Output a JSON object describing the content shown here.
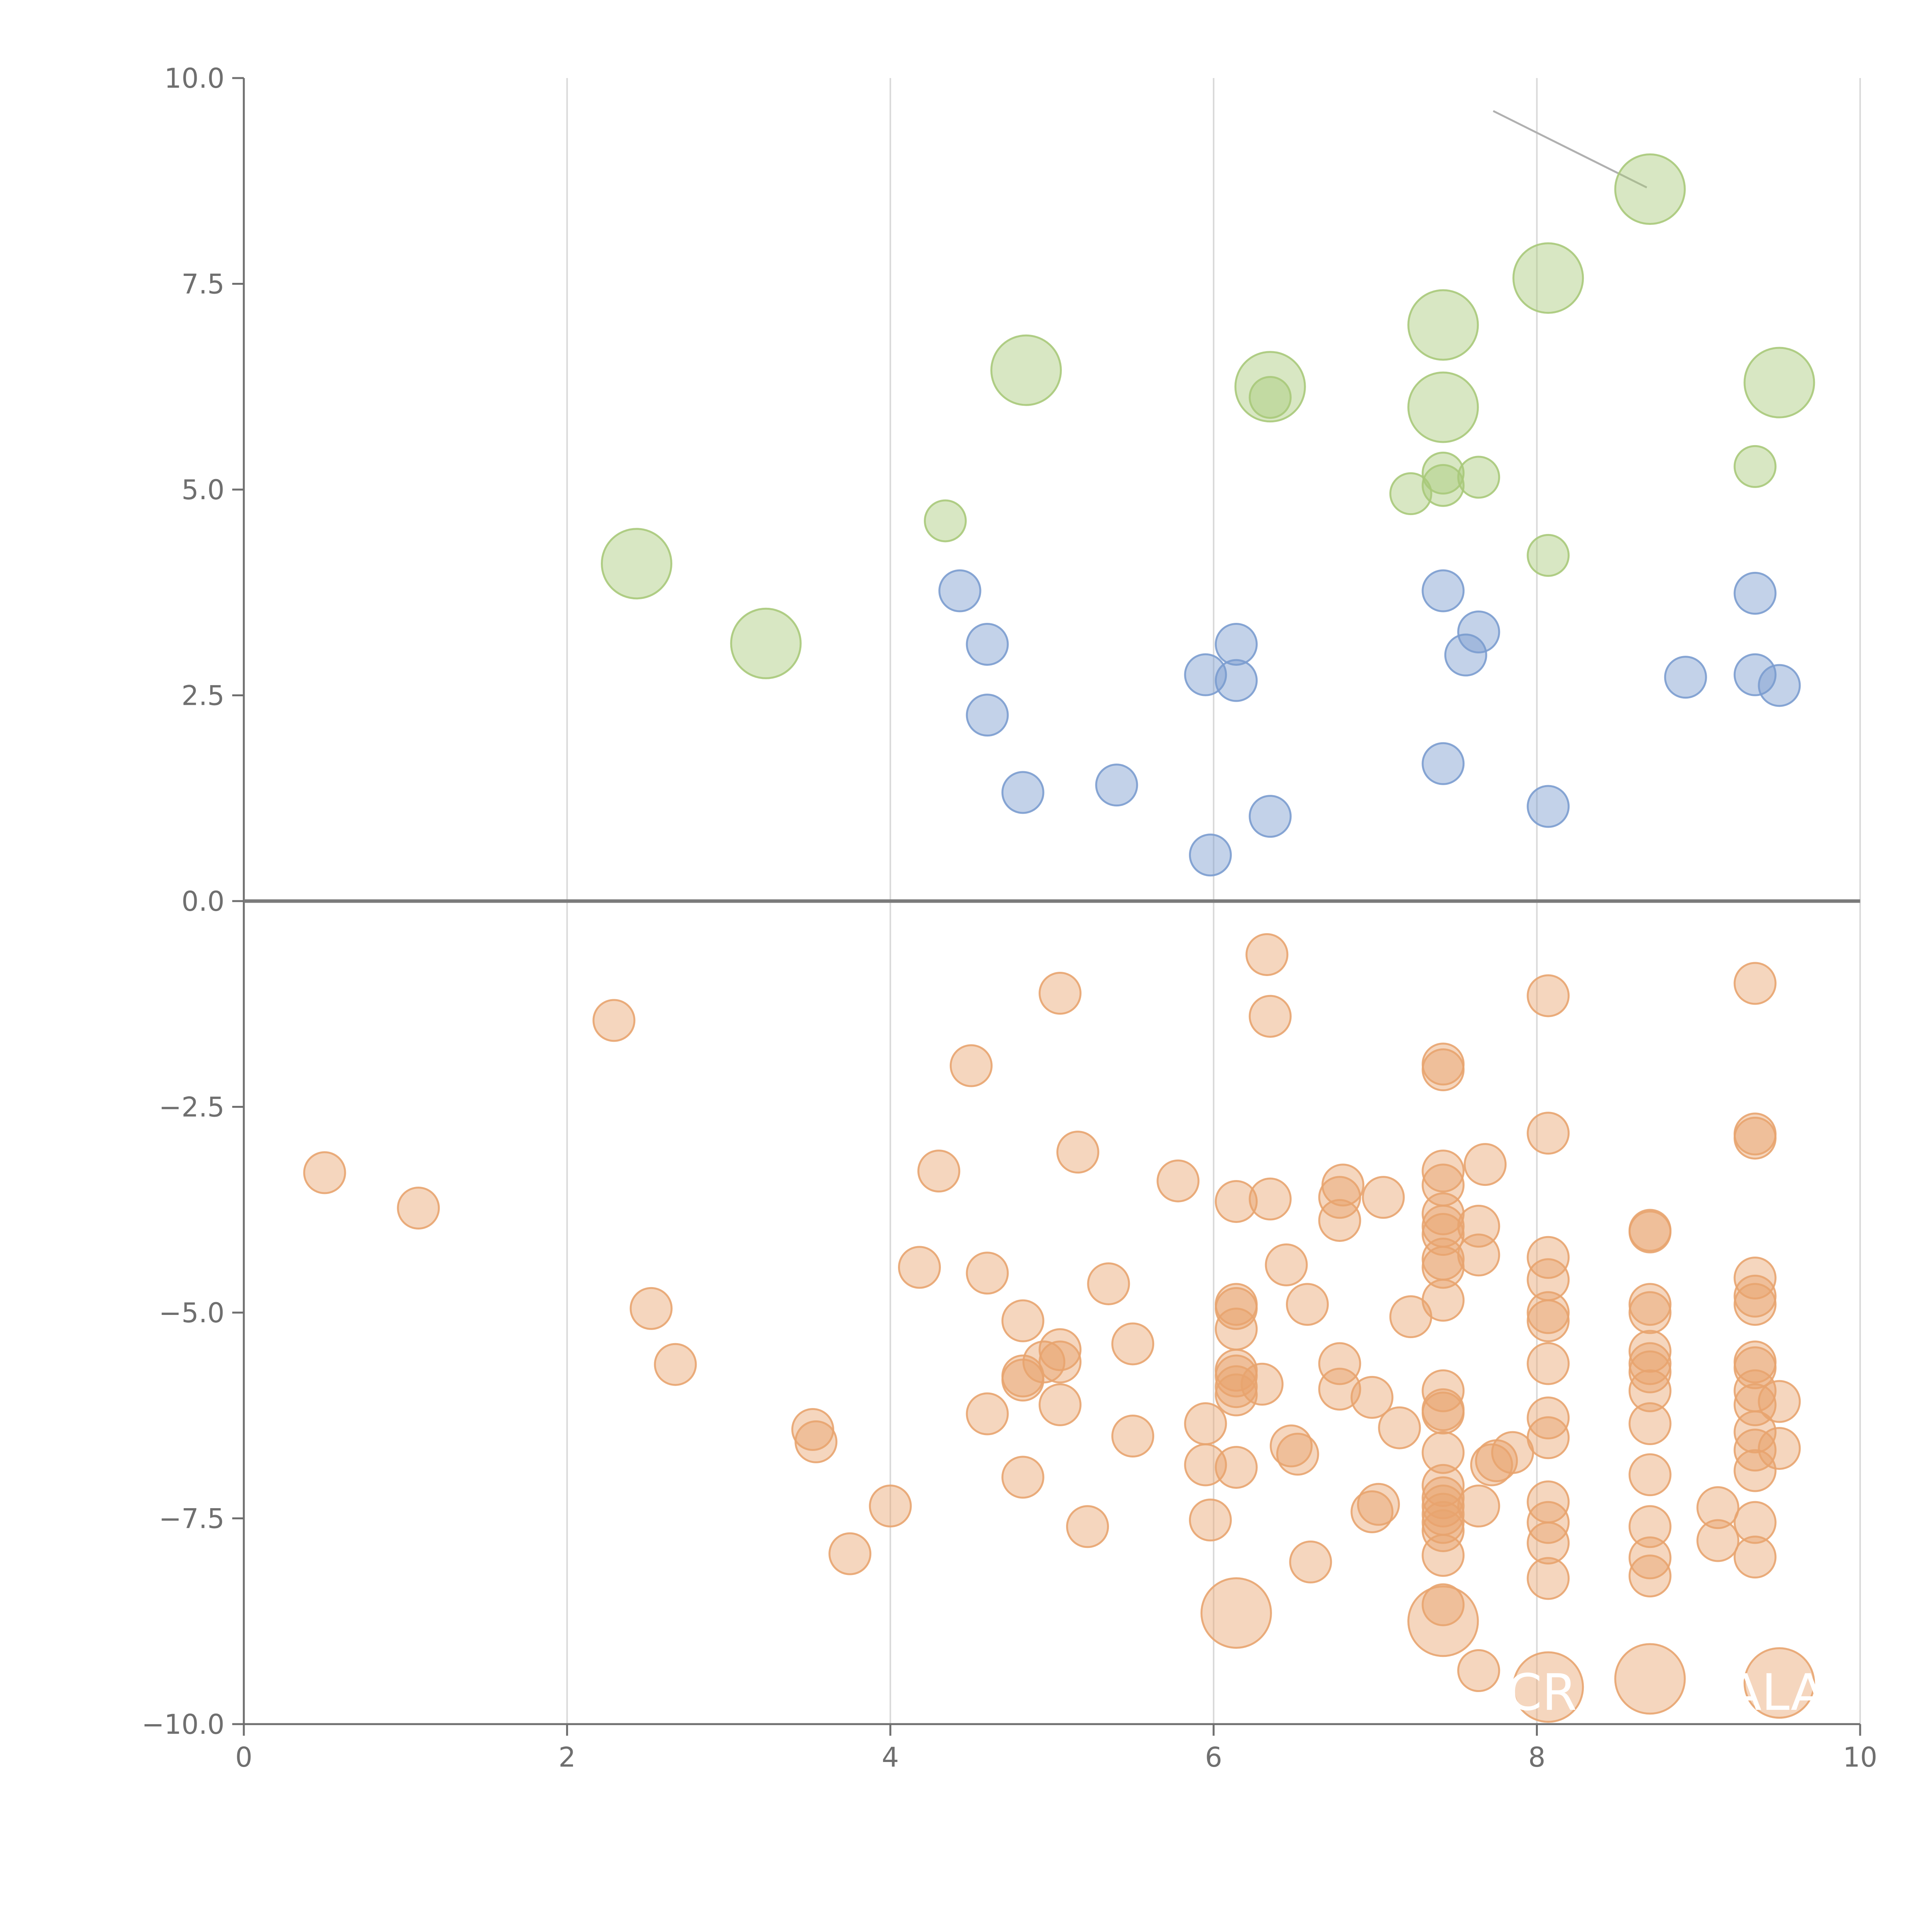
{
  "chart_data": {
    "type": "scatter",
    "title": "",
    "xlabel": "",
    "ylabel": "",
    "xlim": [
      0,
      10
    ],
    "ylim": [
      -10,
      10
    ],
    "x_ticks": [
      0,
      2,
      4,
      6,
      8,
      10
    ],
    "x_tick_labels": [
      "0",
      "2",
      "4",
      "6",
      "8",
      "10"
    ],
    "y_ticks": [
      10,
      7.5,
      5,
      2.5,
      0,
      -2.5,
      -5,
      -7.5,
      -10
    ],
    "y_tick_labels": [
      "10.0",
      "7.5",
      "5.0",
      "2.5",
      "0.0",
      "−2.5",
      "−5.0",
      "−7.5",
      "−10.0"
    ],
    "vertical_grid": true,
    "zero_line": true,
    "colors": {
      "green": "#a9c97a",
      "blue": "#7b9ccf",
      "orange": "#e8a46f",
      "grid": "#d9d9d9",
      "axis": "#6f6f6f",
      "zero_line": "#7a7a7a",
      "leader": "#b0b0b0"
    },
    "series": [
      {
        "color": "#a9c97a",
        "points": [
          [
            2.43,
            4.1,
            2
          ],
          [
            3.23,
            3.13,
            2
          ],
          [
            4.34,
            4.62,
            1
          ],
          [
            4.84,
            6.45,
            2
          ],
          [
            6.35,
            6.25,
            2
          ],
          [
            6.35,
            6.12,
            1
          ],
          [
            7.22,
            4.95,
            1
          ],
          [
            7.42,
            5.2,
            1
          ],
          [
            7.42,
            5.05,
            1
          ],
          [
            7.42,
            7.0,
            2
          ],
          [
            7.42,
            6.0,
            2
          ],
          [
            7.64,
            5.15,
            1
          ],
          [
            8.07,
            7.57,
            2
          ],
          [
            8.07,
            4.2,
            1
          ],
          [
            8.7,
            8.65,
            2
          ],
          [
            9.35,
            5.28,
            1
          ],
          [
            9.5,
            6.3,
            2
          ]
        ]
      },
      {
        "color": "#7b9ccf",
        "points": [
          [
            4.43,
            3.77,
            1
          ],
          [
            4.6,
            3.12,
            1
          ],
          [
            4.6,
            2.26,
            1
          ],
          [
            4.82,
            1.32,
            1
          ],
          [
            5.4,
            1.41,
            1
          ],
          [
            5.95,
            2.75,
            1
          ],
          [
            5.98,
            0.56,
            1
          ],
          [
            6.14,
            3.12,
            1
          ],
          [
            6.14,
            2.68,
            1
          ],
          [
            6.35,
            1.03,
            1
          ],
          [
            7.42,
            3.77,
            1
          ],
          [
            7.42,
            1.67,
            1
          ],
          [
            7.56,
            2.99,
            1
          ],
          [
            7.64,
            3.27,
            1
          ],
          [
            8.07,
            1.15,
            1
          ],
          [
            8.92,
            2.72,
            1
          ],
          [
            9.35,
            3.74,
            1
          ],
          [
            9.35,
            2.75,
            1
          ],
          [
            9.5,
            2.62,
            1
          ]
        ]
      },
      {
        "color": "#e8a46f",
        "points": [
          [
            0.5,
            -3.3,
            1
          ],
          [
            1.08,
            -3.73,
            1
          ],
          [
            2.29,
            -1.45,
            1
          ],
          [
            2.52,
            -4.95,
            1
          ],
          [
            2.67,
            -5.63,
            1
          ],
          [
            3.52,
            -6.42,
            1
          ],
          [
            3.54,
            -6.57,
            1
          ],
          [
            3.75,
            -7.93,
            1
          ],
          [
            4.0,
            -7.35,
            1
          ],
          [
            4.18,
            -4.45,
            1
          ],
          [
            4.3,
            -3.28,
            1
          ],
          [
            4.5,
            -2.0,
            1
          ],
          [
            4.6,
            -4.52,
            1
          ],
          [
            4.6,
            -6.23,
            1
          ],
          [
            4.82,
            -5.1,
            1
          ],
          [
            4.82,
            -5.77,
            1
          ],
          [
            4.82,
            -5.82,
            1
          ],
          [
            4.82,
            -7.0,
            1
          ],
          [
            4.95,
            -5.6,
            1
          ],
          [
            5.05,
            -1.12,
            1
          ],
          [
            5.05,
            -5.45,
            1
          ],
          [
            5.05,
            -5.6,
            1
          ],
          [
            5.05,
            -6.12,
            1
          ],
          [
            5.16,
            -3.05,
            1
          ],
          [
            5.22,
            -7.6,
            1
          ],
          [
            5.35,
            -4.65,
            1
          ],
          [
            5.5,
            -5.38,
            1
          ],
          [
            5.5,
            -6.5,
            1
          ],
          [
            5.78,
            -3.4,
            1
          ],
          [
            5.95,
            -6.35,
            1
          ],
          [
            5.95,
            -6.85,
            1
          ],
          [
            5.98,
            -7.52,
            1
          ],
          [
            6.14,
            -3.65,
            1
          ],
          [
            6.14,
            -4.9,
            1
          ],
          [
            6.14,
            -4.95,
            1
          ],
          [
            6.14,
            -5.2,
            1
          ],
          [
            6.14,
            -5.7,
            1
          ],
          [
            6.14,
            -5.77,
            1
          ],
          [
            6.14,
            -5.9,
            1
          ],
          [
            6.14,
            -6.0,
            1
          ],
          [
            6.14,
            -6.88,
            1
          ],
          [
            6.14,
            -8.65,
            2
          ],
          [
            6.3,
            -5.87,
            1
          ],
          [
            6.33,
            -0.65,
            1
          ],
          [
            6.35,
            -1.4,
            1
          ],
          [
            6.35,
            -3.62,
            1
          ],
          [
            6.45,
            -4.42,
            1
          ],
          [
            6.48,
            -6.62,
            1
          ],
          [
            6.52,
            -6.72,
            1
          ],
          [
            6.58,
            -4.9,
            1
          ],
          [
            6.6,
            -8.03,
            1
          ],
          [
            6.78,
            -3.6,
            1
          ],
          [
            6.78,
            -3.88,
            1
          ],
          [
            6.78,
            -5.62,
            1
          ],
          [
            6.78,
            -5.93,
            1
          ],
          [
            6.8,
            -3.45,
            1
          ],
          [
            6.98,
            -6.03,
            1
          ],
          [
            6.98,
            -7.42,
            1
          ],
          [
            7.02,
            -7.33,
            1
          ],
          [
            7.05,
            -3.6,
            1
          ],
          [
            7.15,
            -6.4,
            1
          ],
          [
            7.22,
            -5.05,
            1
          ],
          [
            7.42,
            -1.98,
            1
          ],
          [
            7.42,
            -2.05,
            1
          ],
          [
            7.42,
            -3.28,
            1
          ],
          [
            7.42,
            -3.45,
            1
          ],
          [
            7.42,
            -3.8,
            1
          ],
          [
            7.42,
            -3.95,
            1
          ],
          [
            7.42,
            -4.05,
            1
          ],
          [
            7.42,
            -4.35,
            1
          ],
          [
            7.42,
            -4.45,
            1
          ],
          [
            7.42,
            -4.85,
            1
          ],
          [
            7.42,
            -5.95,
            1
          ],
          [
            7.42,
            -6.18,
            1
          ],
          [
            7.42,
            -6.22,
            1
          ],
          [
            7.42,
            -6.7,
            1
          ],
          [
            7.42,
            -7.1,
            1
          ],
          [
            7.42,
            -7.25,
            1
          ],
          [
            7.42,
            -7.35,
            1
          ],
          [
            7.42,
            -7.45,
            1
          ],
          [
            7.42,
            -7.55,
            1
          ],
          [
            7.42,
            -7.65,
            1
          ],
          [
            7.42,
            -7.95,
            1
          ],
          [
            7.42,
            -8.55,
            1
          ],
          [
            7.42,
            -8.75,
            2
          ],
          [
            7.64,
            -3.95,
            1
          ],
          [
            7.64,
            -4.3,
            1
          ],
          [
            7.64,
            -7.35,
            1
          ],
          [
            7.64,
            -9.35,
            1
          ],
          [
            7.68,
            -3.2,
            1
          ],
          [
            7.72,
            -6.85,
            1
          ],
          [
            7.75,
            -6.8,
            1
          ],
          [
            7.85,
            -6.7,
            1
          ],
          [
            8.07,
            -1.15,
            1
          ],
          [
            8.07,
            -2.82,
            1
          ],
          [
            8.07,
            -4.33,
            1
          ],
          [
            8.07,
            -4.6,
            1
          ],
          [
            8.07,
            -5.0,
            1
          ],
          [
            8.07,
            -5.1,
            1
          ],
          [
            8.07,
            -5.62,
            1
          ],
          [
            8.07,
            -6.28,
            1
          ],
          [
            8.07,
            -6.52,
            1
          ],
          [
            8.07,
            -7.3,
            1
          ],
          [
            8.07,
            -7.55,
            1
          ],
          [
            8.07,
            -7.8,
            1
          ],
          [
            8.07,
            -8.23,
            1
          ],
          [
            8.07,
            -9.55,
            2
          ],
          [
            8.7,
            -4.0,
            1
          ],
          [
            8.7,
            -4.02,
            1
          ],
          [
            8.7,
            -4.9,
            1
          ],
          [
            8.7,
            -5.0,
            1
          ],
          [
            8.7,
            -5.47,
            1
          ],
          [
            8.7,
            -5.62,
            1
          ],
          [
            8.7,
            -5.72,
            1
          ],
          [
            8.7,
            -5.95,
            1
          ],
          [
            8.7,
            -6.35,
            1
          ],
          [
            8.7,
            -6.97,
            1
          ],
          [
            8.7,
            -7.6,
            1
          ],
          [
            8.7,
            -7.98,
            1
          ],
          [
            8.7,
            -8.2,
            1
          ],
          [
            8.7,
            -9.45,
            2
          ],
          [
            9.12,
            -7.37,
            1
          ],
          [
            9.12,
            -7.77,
            1
          ],
          [
            9.35,
            -1.0,
            1
          ],
          [
            9.35,
            -2.83,
            1
          ],
          [
            9.35,
            -2.88,
            1
          ],
          [
            9.35,
            -4.58,
            1
          ],
          [
            9.35,
            -4.8,
            1
          ],
          [
            9.35,
            -4.9,
            1
          ],
          [
            9.35,
            -5.6,
            1
          ],
          [
            9.35,
            -5.67,
            1
          ],
          [
            9.35,
            -5.95,
            1
          ],
          [
            9.35,
            -6.12,
            1
          ],
          [
            9.35,
            -6.45,
            1
          ],
          [
            9.35,
            -6.67,
            1
          ],
          [
            9.35,
            -6.92,
            1
          ],
          [
            9.35,
            -7.55,
            1
          ],
          [
            9.35,
            -7.97,
            1
          ],
          [
            9.5,
            -6.08,
            1
          ],
          [
            9.5,
            -6.65,
            1
          ],
          [
            9.5,
            -9.5,
            2
          ]
        ]
      }
    ],
    "point_labels": [
      "CR",
      "ALA"
    ]
  }
}
